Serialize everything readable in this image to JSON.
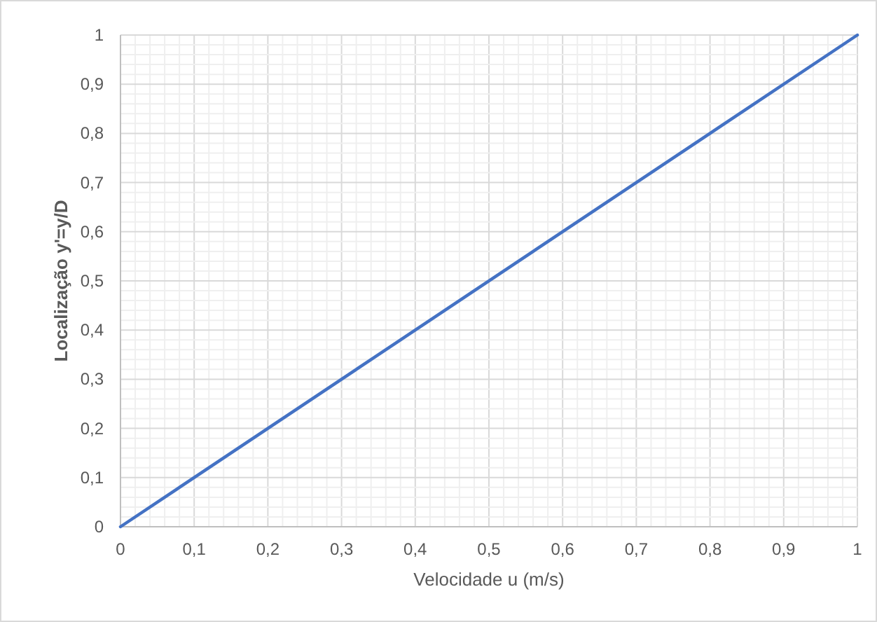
{
  "chart_data": {
    "type": "line",
    "xlabel": "Velocidade u (m/s)",
    "ylabel": "Localização y'=y/D",
    "x": [
      0,
      1
    ],
    "series": [
      {
        "color": "#4472c4",
        "values": [
          0,
          1
        ]
      }
    ],
    "xlim": [
      0,
      1
    ],
    "ylim": [
      0,
      1
    ],
    "xticks": [
      0,
      {
        "value": 0.02,
        "label": null
      },
      {
        "value": 0.04,
        "label": null
      },
      {
        "value": 0.06,
        "label": null
      },
      {
        "value": 0.08,
        "label": null
      },
      {
        "value": 0.1,
        "label": "0,1"
      },
      {
        "value": 0.12,
        "label": null
      },
      {
        "value": 0.14,
        "label": null
      },
      {
        "value": 0.16,
        "label": null
      },
      {
        "value": 0.18,
        "label": null
      },
      {
        "value": 0.2,
        "label": "0,2"
      },
      {
        "value": 0.22,
        "label": null
      },
      {
        "value": 0.24,
        "label": null
      },
      {
        "value": 0.26,
        "label": null
      },
      {
        "value": 0.28,
        "label": null
      },
      {
        "value": 0.3,
        "label": "0,3"
      },
      {
        "value": 0.32,
        "label": null
      },
      {
        "value": 0.34,
        "label": null
      },
      {
        "value": 0.36,
        "label": null
      },
      {
        "value": 0.38,
        "label": null
      },
      {
        "value": 0.4,
        "label": "0,4"
      },
      {
        "value": 0.42,
        "label": null
      },
      {
        "value": 0.44,
        "label": null
      },
      {
        "value": 0.46,
        "label": null
      },
      {
        "value": 0.48,
        "label": null
      },
      {
        "value": 0.5,
        "label": "0,5"
      },
      {
        "value": 0.52,
        "label": null
      },
      {
        "value": 0.54,
        "label": null
      },
      {
        "value": 0.56,
        "label": null
      },
      {
        "value": 0.58,
        "label": null
      },
      {
        "value": 0.6,
        "label": "0,6"
      },
      {
        "value": 0.62,
        "label": null
      },
      {
        "value": 0.64,
        "label": null
      },
      {
        "value": 0.66,
        "label": null
      },
      {
        "value": 0.68,
        "label": null
      },
      {
        "value": 0.7,
        "label": "0,7"
      },
      {
        "value": 0.72,
        "label": null
      },
      {
        "value": 0.74,
        "label": null
      },
      {
        "value": 0.76,
        "label": null
      },
      {
        "value": 0.78,
        "label": null
      },
      {
        "value": 0.8,
        "label": "0,8"
      },
      {
        "value": 0.82,
        "label": null
      },
      {
        "value": 0.84,
        "label": null
      },
      {
        "value": 0.86,
        "label": null
      },
      {
        "value": 0.88,
        "label": null
      },
      {
        "value": 0.9,
        "label": "0,9"
      },
      {
        "value": 0.92,
        "label": null
      },
      {
        "value": 0.94,
        "label": null
      },
      {
        "value": 0.96,
        "label": null
      },
      {
        "value": 0.98,
        "label": null
      },
      1
    ],
    "yticks": [
      0,
      {
        "value": 0.02,
        "label": null
      },
      {
        "value": 0.04,
        "label": null
      },
      {
        "value": 0.06,
        "label": null
      },
      {
        "value": 0.08,
        "label": null
      },
      {
        "value": 0.1,
        "label": "0,1"
      },
      {
        "value": 0.12,
        "label": null
      },
      {
        "value": 0.14,
        "label": null
      },
      {
        "value": 0.16,
        "label": null
      },
      {
        "value": 0.18,
        "label": null
      },
      {
        "value": 0.2,
        "label": "0,2"
      },
      {
        "value": 0.22,
        "label": null
      },
      {
        "value": 0.24,
        "label": null
      },
      {
        "value": 0.26,
        "label": null
      },
      {
        "value": 0.28,
        "label": null
      },
      {
        "value": 0.3,
        "label": "0,3"
      },
      {
        "value": 0.32,
        "label": null
      },
      {
        "value": 0.34,
        "label": null
      },
      {
        "value": 0.36,
        "label": null
      },
      {
        "value": 0.38,
        "label": null
      },
      {
        "value": 0.4,
        "label": "0,4"
      },
      {
        "value": 0.42,
        "label": null
      },
      {
        "value": 0.44,
        "label": null
      },
      {
        "value": 0.46,
        "label": null
      },
      {
        "value": 0.48,
        "label": null
      },
      {
        "value": 0.5,
        "label": "0,5"
      },
      {
        "value": 0.52,
        "label": null
      },
      {
        "value": 0.54,
        "label": null
      },
      {
        "value": 0.56,
        "label": null
      },
      {
        "value": 0.58,
        "label": null
      },
      {
        "value": 0.6,
        "label": "0,6"
      },
      {
        "value": 0.62,
        "label": null
      },
      {
        "value": 0.64,
        "label": null
      },
      {
        "value": 0.66,
        "label": null
      },
      {
        "value": 0.68,
        "label": null
      },
      {
        "value": 0.7,
        "label": "0,7"
      },
      {
        "value": 0.72,
        "label": null
      },
      {
        "value": 0.74,
        "label": null
      },
      {
        "value": 0.76,
        "label": null
      },
      {
        "value": 0.78,
        "label": null
      },
      {
        "value": 0.8,
        "label": "0,8"
      },
      {
        "value": 0.82,
        "label": null
      },
      {
        "value": 0.84,
        "label": null
      },
      {
        "value": 0.86,
        "label": null
      },
      {
        "value": 0.88,
        "label": null
      },
      {
        "value": 0.9,
        "label": "0,9"
      },
      {
        "value": 0.92,
        "label": null
      },
      {
        "value": 0.94,
        "label": null
      },
      {
        "value": 0.96,
        "label": null
      },
      {
        "value": 0.98,
        "label": null
      },
      1
    ],
    "grid": true,
    "marker": "none",
    "line_style": "solid"
  }
}
